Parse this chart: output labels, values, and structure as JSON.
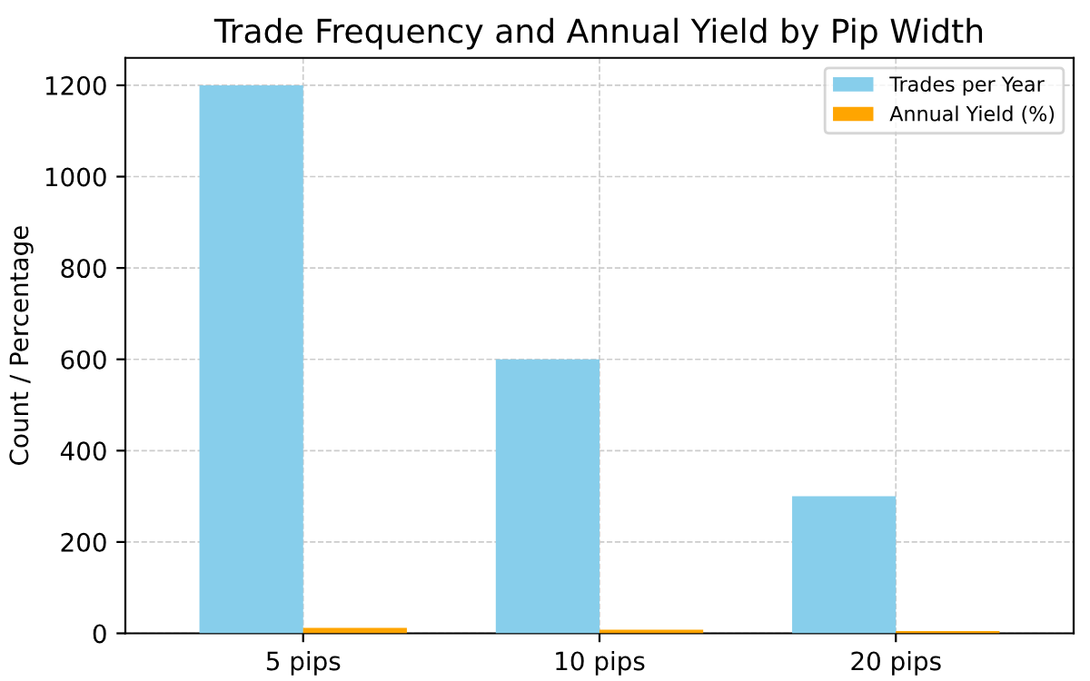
{
  "chart_data": {
    "type": "bar",
    "title": "Trade Frequency and Annual Yield by Pip Width",
    "ylabel": "Count / Percentage",
    "categories": [
      "5 pips",
      "10 pips",
      "20 pips"
    ],
    "series": [
      {
        "name": "Trades per Year",
        "color": "#87ceeb",
        "values": [
          1200,
          600,
          300
        ]
      },
      {
        "name": "Annual Yield (%)",
        "color": "#ffa500",
        "values": [
          12,
          8,
          5
        ]
      }
    ],
    "ylim": [
      0,
      1260
    ],
    "yticks": [
      0,
      200,
      400,
      600,
      800,
      1000,
      1200
    ],
    "grid": true,
    "legend": "top right"
  }
}
